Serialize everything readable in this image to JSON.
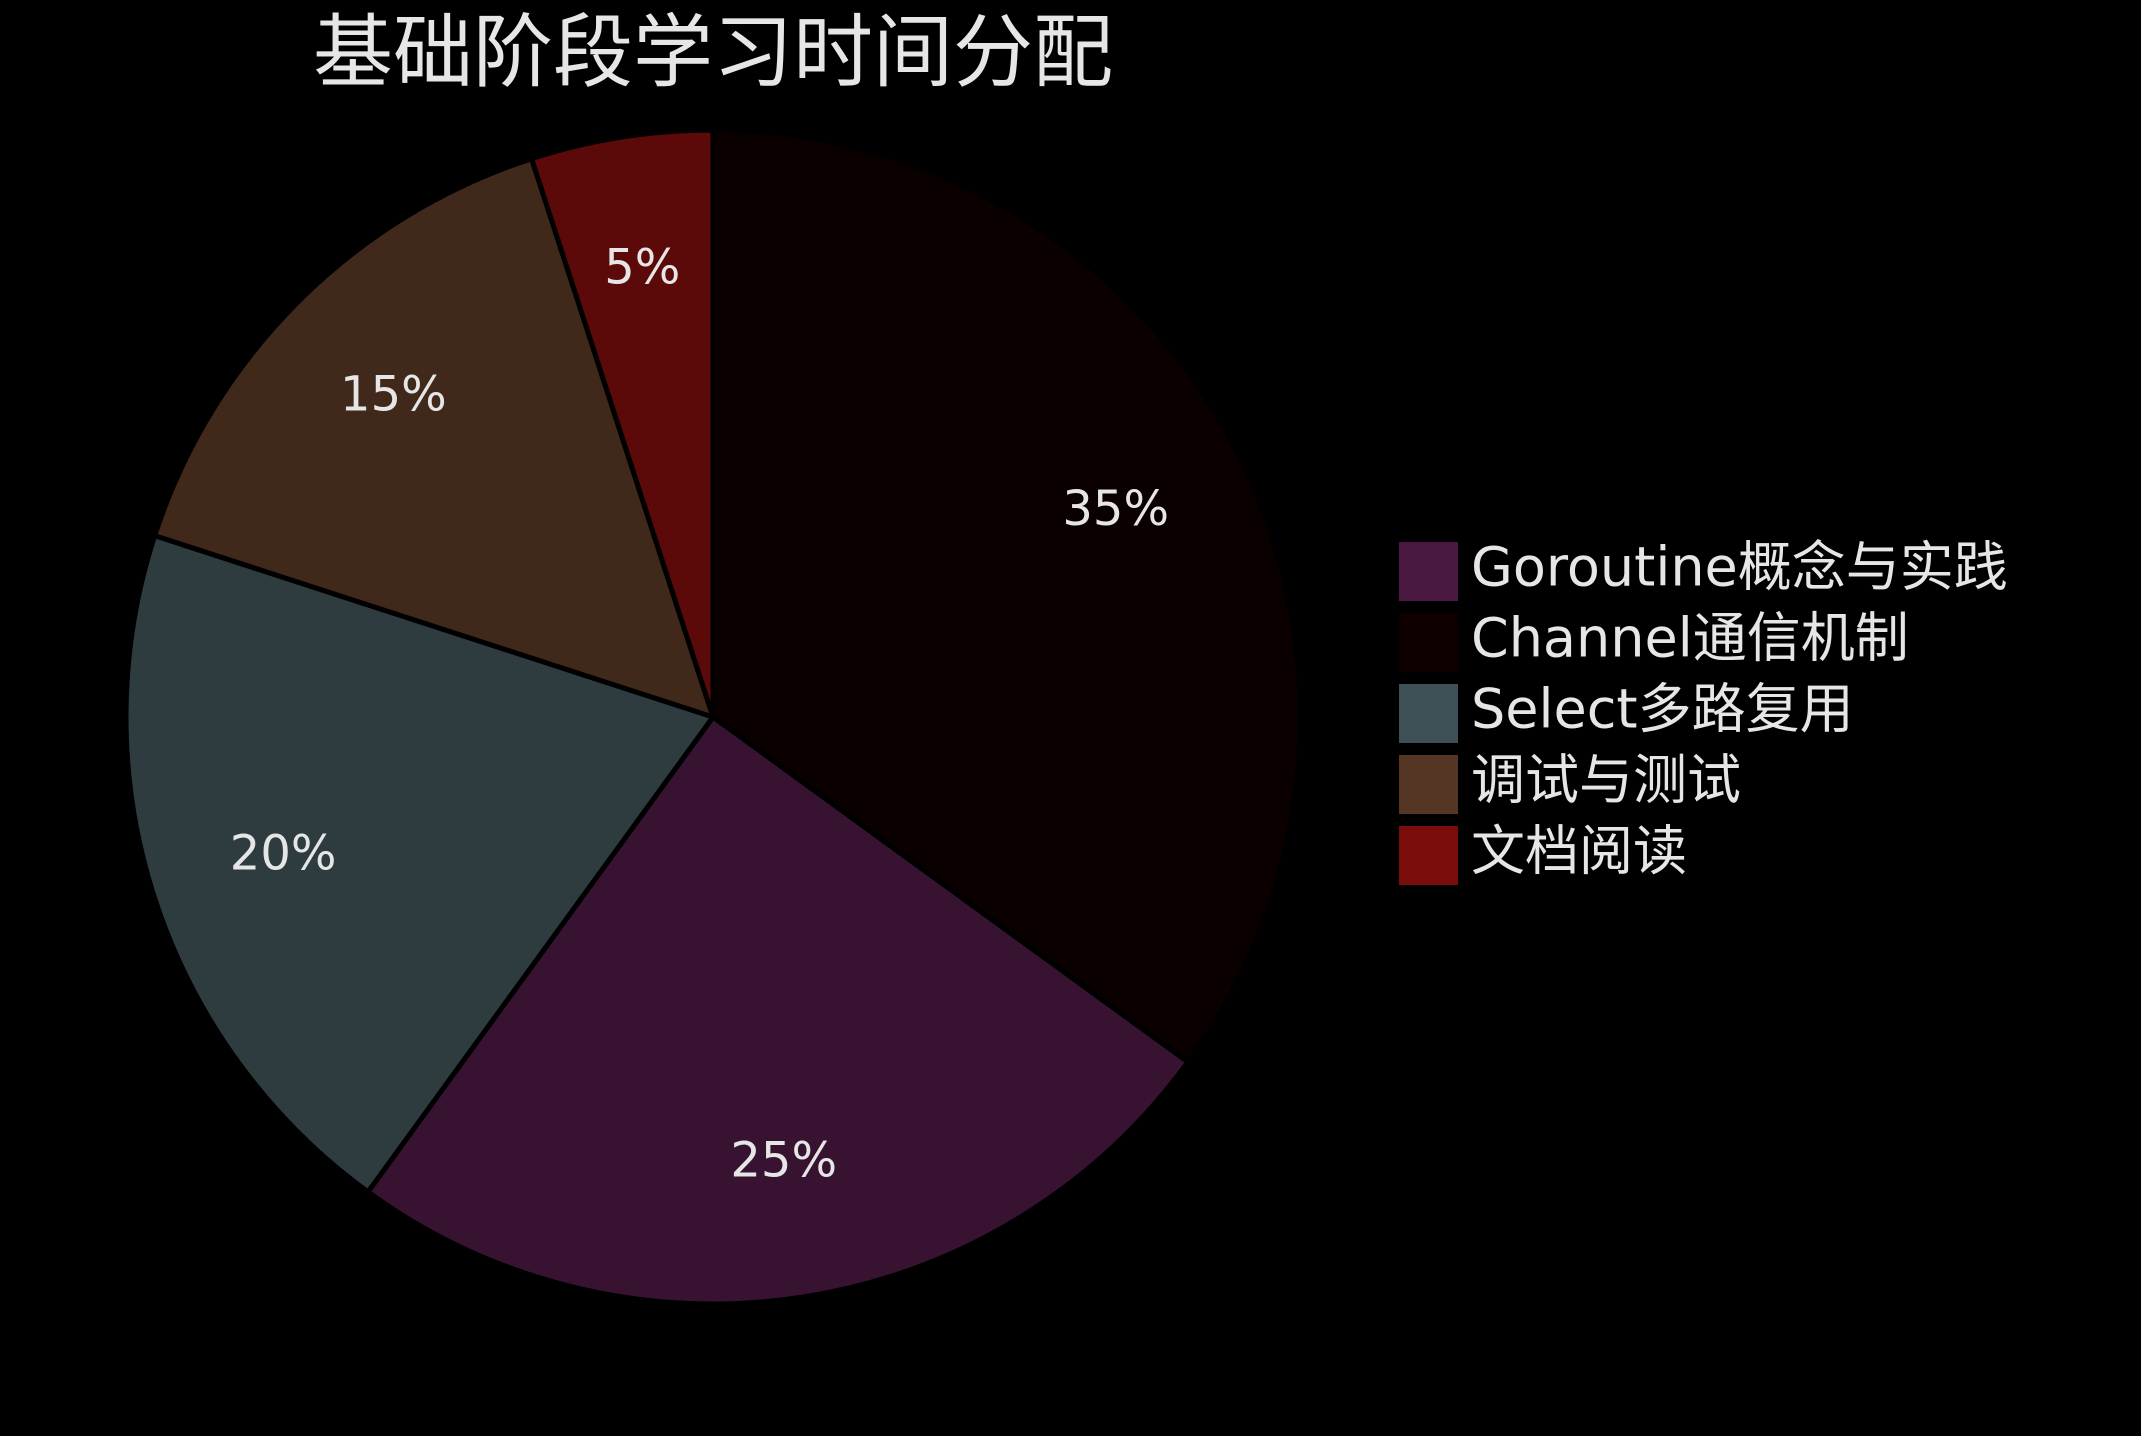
{
  "chart_data": {
    "type": "pie",
    "title": "基础阶段学习时间分配",
    "categories": [
      "Goroutine概念与实践",
      "Channel通信机制",
      "Select多路复用",
      "调试与测试",
      "文档阅读"
    ],
    "values": [
      25,
      35,
      20,
      15,
      5
    ],
    "value_labels": [
      "25%",
      "35%",
      "20%",
      "15%",
      "5%"
    ],
    "colors": [
      "#4a1942",
      "#0f0000",
      "#3d5055",
      "#553524",
      "#7a0c0c"
    ],
    "opacity": 0.75,
    "sort": "descending",
    "direction": "clockwise",
    "legend": "right"
  }
}
